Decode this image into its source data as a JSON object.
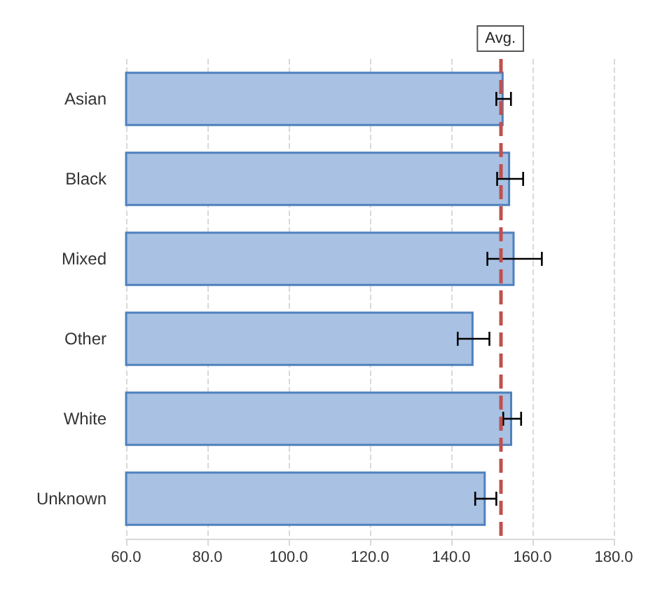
{
  "chart_data": {
    "type": "bar",
    "orientation": "horizontal",
    "categories": [
      "Asian",
      "Black",
      "Mixed",
      "Other",
      "White",
      "Unknown"
    ],
    "values": [
      152.9,
      154.5,
      155.6,
      145.5,
      155.0,
      148.5
    ],
    "errors": [
      1.8,
      3.2,
      6.7,
      3.9,
      2.2,
      2.6
    ],
    "color": "#a9c1e3",
    "xlim": [
      60,
      180
    ],
    "xticks": [
      {
        "value": 60,
        "label": "60.0"
      },
      {
        "value": 80,
        "label": "80.0"
      },
      {
        "value": 100,
        "label": "100.0"
      },
      {
        "value": 120,
        "label": "120.0"
      },
      {
        "value": 140,
        "label": "140.0"
      },
      {
        "value": 160,
        "label": "160.0"
      },
      {
        "value": 180,
        "label": "180.0"
      }
    ],
    "ref_lines": [
      {
        "axis": "x",
        "value": 152.1,
        "label": "Avg.",
        "color": "#c0504d",
        "line_style": "dashed"
      }
    ],
    "grid": "x"
  }
}
